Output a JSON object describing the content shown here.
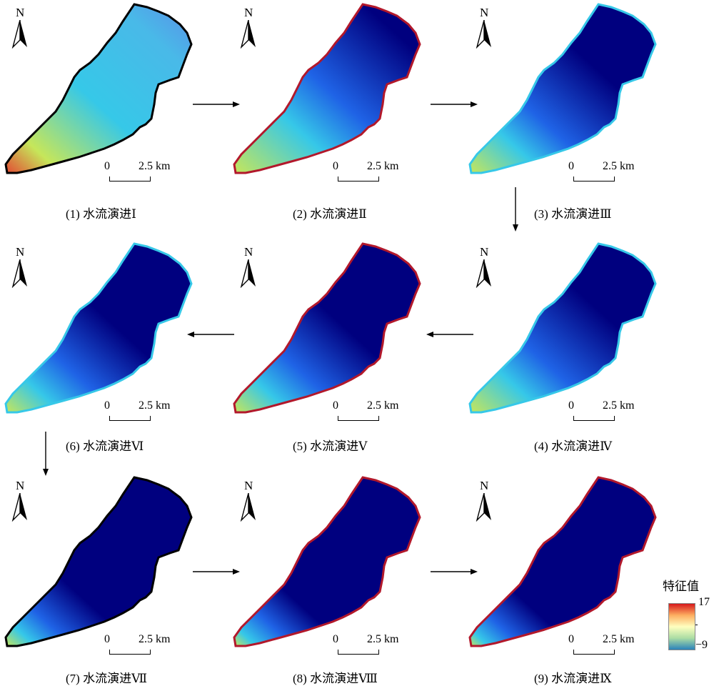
{
  "panels": [
    {
      "caption": "(1) 水流演进Ⅰ",
      "north": "N",
      "scale_zero": "0",
      "scale_dist": "2.5 km",
      "fill": "low-mid"
    },
    {
      "caption": "(2) 水流演进Ⅱ",
      "north": "N",
      "scale_zero": "0",
      "scale_dist": "2.5 km",
      "fill": "mid"
    },
    {
      "caption": "(3) 水流演进Ⅲ",
      "north": "N",
      "scale_zero": "0",
      "scale_dist": "2.5 km",
      "fill": "mid"
    },
    {
      "caption": "(4) 水流演进Ⅳ",
      "north": "N",
      "scale_zero": "0",
      "scale_dist": "2.5 km",
      "fill": "mid-low"
    },
    {
      "caption": "(5) 水流演进Ⅴ",
      "north": "N",
      "scale_zero": "0",
      "scale_dist": "2.5 km",
      "fill": "mid-low"
    },
    {
      "caption": "(6) 水流演进Ⅵ",
      "north": "N",
      "scale_zero": "0",
      "scale_dist": "2.5 km",
      "fill": "mid-low"
    },
    {
      "caption": "(7) 水流演进Ⅶ",
      "north": "N",
      "scale_zero": "0",
      "scale_dist": "2.5 km",
      "fill": "low"
    },
    {
      "caption": "(8) 水流演进Ⅷ",
      "north": "N",
      "scale_zero": "0",
      "scale_dist": "2.5 km",
      "fill": "low"
    },
    {
      "caption": "(9) 水流演进Ⅸ",
      "north": "N",
      "scale_zero": "0",
      "scale_dist": "2.5 km",
      "fill": "low"
    }
  ],
  "legend": {
    "title": "特征值",
    "max": "17",
    "min": "−9",
    "colors": [
      "#d7191c",
      "#fdae61",
      "#ffffbf",
      "#abdda4",
      "#2b83ba"
    ]
  },
  "colors": {
    "background_basin": "#00007f",
    "mid_blue": "#1f63e6",
    "cyan": "#36c8e8",
    "yellow_green": "#c6e65a",
    "red_edge": "#b2182b"
  },
  "icons": [
    "north-arrow-icon",
    "flow-arrow-icon"
  ]
}
